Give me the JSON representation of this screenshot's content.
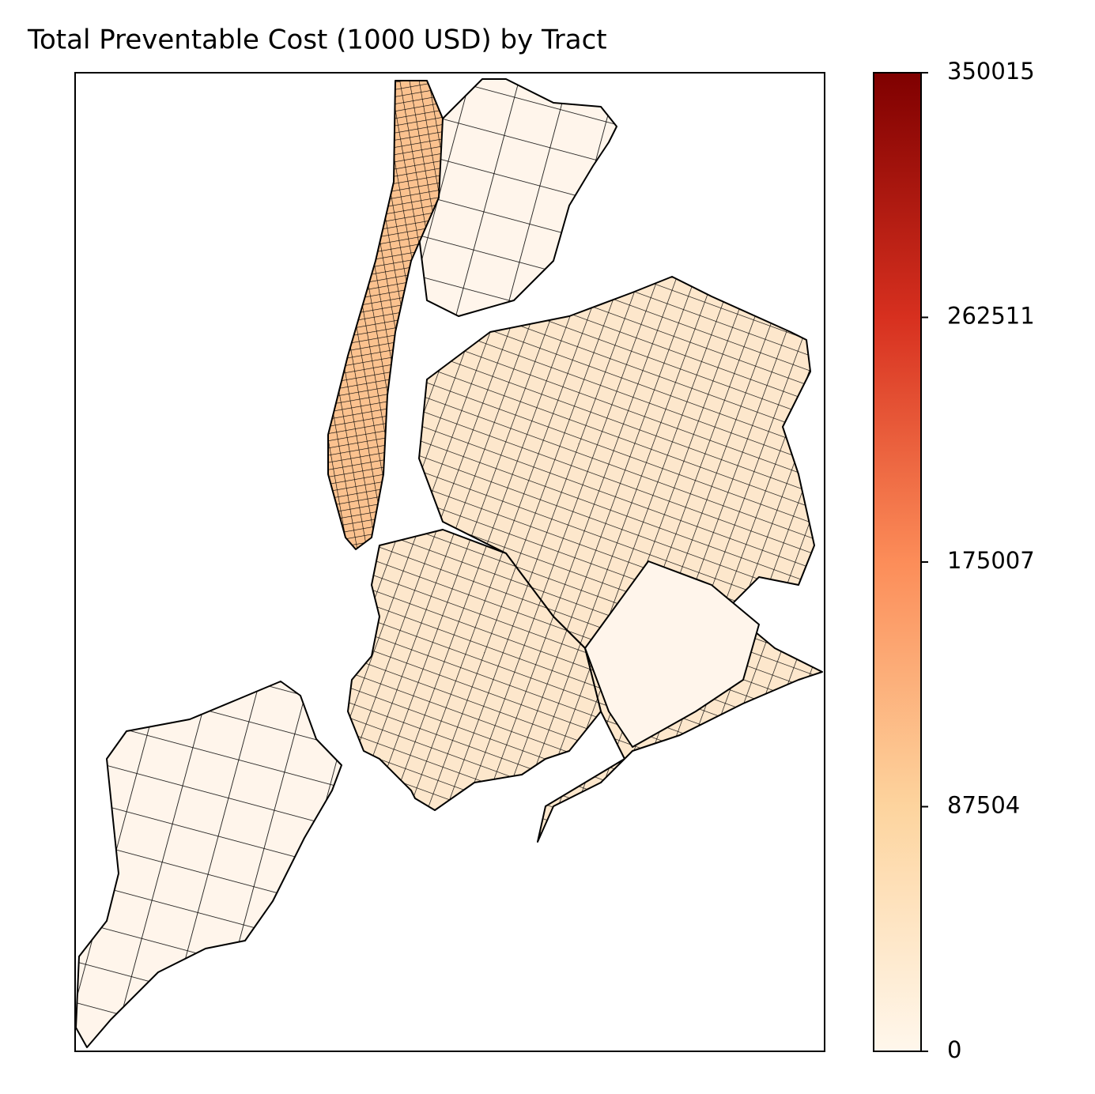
{
  "chart_data": {
    "type": "choropleth",
    "title": "Total Preventable Cost (1000 USD) by Tract",
    "colormap": "OrRd",
    "colors": [
      "#fff7ec",
      "#fdd49e",
      "#fc8d59",
      "#d7301f",
      "#7f0000"
    ],
    "clim": [
      0,
      350015
    ],
    "colorbar_ticks": [
      0,
      87504,
      175007,
      262511,
      350015
    ]
  }
}
